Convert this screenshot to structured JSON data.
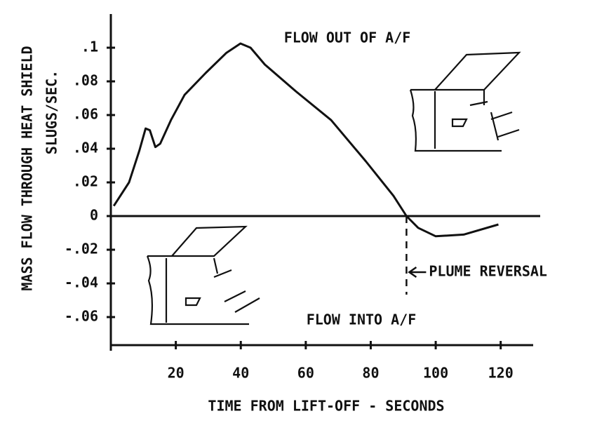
{
  "chart_data": {
    "type": "line",
    "y_label": "MASS FLOW THROUGH HEAT SHIELD",
    "y_units": "SLUGS/SEC.",
    "x_label": "TIME FROM LIFT-OFF - SECONDS",
    "annotations": [
      "FLOW OUT OF A/F",
      "FLOW INTO A/F"
    ],
    "reversal": {
      "label": "PLUME REVERSAL",
      "x": 91
    },
    "x": [
      0.9,
      5.6,
      8.8,
      10.7,
      12,
      13.7,
      15.2,
      18.5,
      22.7,
      29.2,
      35.6,
      39.9,
      43,
      47.4,
      57,
      67.8,
      78.5,
      87,
      91,
      94.6,
      100,
      108.6,
      119.3
    ],
    "series": [
      {
        "color": "#111111",
        "values": [
          0.006,
          0.02,
          0.039,
          0.052,
          0.051,
          0.041,
          0.043,
          0.057,
          0.072,
          0.085,
          0.097,
          0.1025,
          0.1,
          0.09,
          0.074,
          0.057,
          0.0325,
          0.012,
          0,
          -0.007,
          -0.012,
          -0.011,
          -0.005
        ]
      }
    ],
    "xlim": [
      0,
      130
    ],
    "ylim": [
      -0.08,
      0.12
    ],
    "xticks": [
      20,
      40,
      60,
      80,
      100,
      120
    ],
    "yticks": [
      {
        "value": 0.1,
        "label": ".1"
      },
      {
        "value": 0.08,
        "label": ".08"
      },
      {
        "value": 0.06,
        "label": ".06"
      },
      {
        "value": 0.04,
        "label": ".04"
      },
      {
        "value": 0.02,
        "label": ".02"
      },
      0,
      {
        "value": -0.02,
        "label": "-.02"
      },
      {
        "value": -0.04,
        "label": "-.04"
      },
      {
        "value": -0.06,
        "label": "-.06"
      }
    ]
  }
}
